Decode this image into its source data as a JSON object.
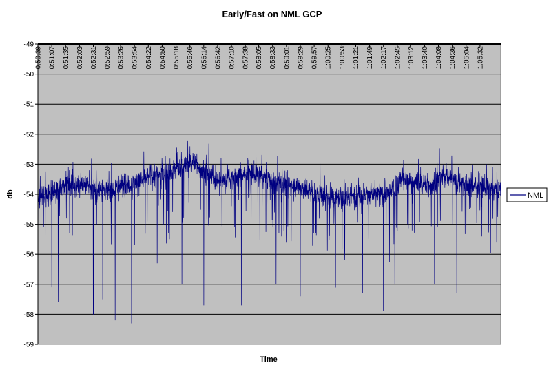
{
  "chart_data": {
    "type": "line",
    "title": "Early/Fast on NML GCP",
    "xlabel": "Time",
    "ylabel": "db",
    "ylim": [
      -59,
      -49
    ],
    "y_ticks": [
      "-49",
      "-50",
      "-51",
      "-52",
      "-53",
      "-54",
      "-55",
      "-56",
      "-57",
      "-58",
      "-59"
    ],
    "x_ticks": [
      "0:50:39",
      "0:51:07",
      "0:51:35",
      "0:52:03",
      "0:52:31",
      "0:52:59",
      "0:53:26",
      "0:53:54",
      "0:54:22",
      "0:54:50",
      "0:55:18",
      "0:55:46",
      "0:56:14",
      "0:56:42",
      "0:57:10",
      "0:57:38",
      "0:58:05",
      "0:58:33",
      "0:59:01",
      "0:59:29",
      "0:59:57",
      "1:00:25",
      "1:00:53",
      "1:01:21",
      "1:01:49",
      "1:02:17",
      "1:02:45",
      "1:03:12",
      "1:03:40",
      "1:04:08",
      "1:04:36",
      "1:05:04",
      "1:05:32"
    ],
    "grid": true,
    "plot_background": "#c0c0c0",
    "legend_position": "right",
    "series": [
      {
        "name": "NML",
        "color": "#000080",
        "baseline": [
          -54.1,
          -54.0,
          -53.6,
          -53.7,
          -53.8,
          -53.9,
          -53.7,
          -53.6,
          -53.4,
          -53.3,
          -53.2,
          -52.9,
          -53.3,
          -53.6,
          -53.4,
          -53.3,
          -53.4,
          -53.6,
          -53.7,
          -53.8,
          -54.0,
          -54.1,
          -54.1,
          -54.0,
          -54.0,
          -54.0,
          -53.5,
          -53.6,
          -53.7,
          -53.4,
          -53.6,
          -53.7,
          -53.8,
          -53.8
        ],
        "range_min": -58.3,
        "range_max": -52.2,
        "spikes": [
          {
            "x": "0:50:39",
            "y": -56.8
          },
          {
            "x": "0:51:07",
            "y": -57.1
          },
          {
            "x": "0:51:20",
            "y": -57.6
          },
          {
            "x": "0:52:31",
            "y": -58.0
          },
          {
            "x": "0:52:50",
            "y": -57.5
          },
          {
            "x": "0:53:15",
            "y": -58.2
          },
          {
            "x": "0:53:48",
            "y": -58.3
          },
          {
            "x": "0:54:40",
            "y": -56.3
          },
          {
            "x": "0:55:30",
            "y": -57.0
          },
          {
            "x": "0:56:14",
            "y": -57.7
          },
          {
            "x": "0:57:30",
            "y": -57.7
          },
          {
            "x": "0:58:40",
            "y": -57.0
          },
          {
            "x": "0:59:29",
            "y": -57.4
          },
          {
            "x": "1:00:40",
            "y": -57.1
          },
          {
            "x": "1:01:35",
            "y": -57.3
          },
          {
            "x": "1:02:17",
            "y": -57.9
          },
          {
            "x": "1:02:40",
            "y": -57.0
          },
          {
            "x": "1:04:00",
            "y": -57.0
          },
          {
            "x": "1:04:45",
            "y": -57.3
          }
        ]
      }
    ]
  }
}
